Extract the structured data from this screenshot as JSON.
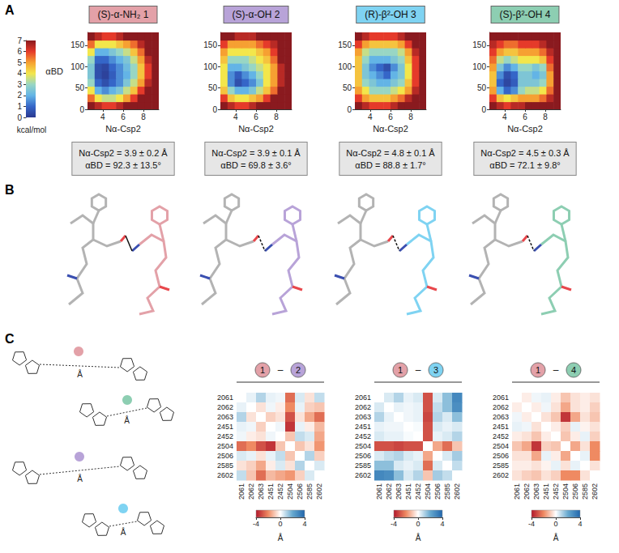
{
  "panel_labels": [
    "A",
    "B",
    "C"
  ],
  "colorbars": [
    {
      "range": [
        0,
        7
      ],
      "ticks": [
        0,
        1,
        2,
        3,
        4,
        5,
        6,
        7
      ],
      "label": "kcal/mol"
    },
    {
      "range": [
        -4,
        4
      ],
      "ticks": [
        -4,
        0,
        4
      ],
      "label": "Å"
    }
  ],
  "schematic": [
    {
      "color": "#e3a1a8",
      "label": "Å"
    },
    {
      "color": "#8dceb2",
      "label": "Å"
    },
    {
      "color": "#b8a3d8",
      "label": "Å"
    },
    {
      "color": "#7fd3f2",
      "label": "Å"
    }
  ],
  "chart_data": [
    {
      "type": "heatmap",
      "title": "(S)-α-NH₂ 1",
      "color": "#e3a1a8",
      "x_label": "Nα-Csp2",
      "y_label": "αBD",
      "xlim": [
        2.5,
        9.5
      ],
      "ylim": [
        0,
        180
      ],
      "xticks": [
        4,
        6,
        8
      ],
      "yticks": [
        0,
        50,
        100,
        150
      ],
      "x": [
        2.85,
        3.55,
        4.25,
        4.95,
        5.65,
        6.35,
        7.05,
        7.75,
        8.45,
        9.15
      ],
      "y": [
        9,
        27,
        45,
        63,
        81,
        99,
        117,
        135,
        153,
        171
      ],
      "cells": [
        [
          7,
          6.5,
          6,
          6,
          6.5,
          7,
          7,
          7,
          7,
          7
        ],
        [
          5.5,
          4,
          3.5,
          3.5,
          4,
          5,
          6,
          7,
          7,
          7
        ],
        [
          4,
          2,
          1.5,
          2,
          2.5,
          3.5,
          4.5,
          6,
          7,
          7
        ],
        [
          3,
          1,
          0.5,
          1,
          1.5,
          2.5,
          3.5,
          5,
          6.5,
          7
        ],
        [
          2.5,
          0.5,
          0.2,
          0.8,
          1.5,
          2,
          3,
          4.5,
          6,
          7
        ],
        [
          2.5,
          0.5,
          0.3,
          1,
          1.5,
          2.2,
          3,
          4.5,
          6,
          7
        ],
        [
          3,
          1,
          1,
          1.5,
          2,
          2.5,
          3.5,
          5,
          6.5,
          7
        ],
        [
          4,
          2,
          2,
          2.5,
          3,
          3.5,
          4.5,
          5.5,
          7,
          7
        ],
        [
          5.5,
          4,
          4,
          4,
          4.5,
          5,
          5.5,
          6.5,
          7,
          7
        ],
        [
          7,
          6.5,
          6,
          6,
          6.5,
          7,
          7,
          7,
          7,
          7
        ]
      ],
      "annotations": [
        "Nα-Csp2 = 3.9 ± 0.2 Å",
        "αBD = 92.3 ± 13.5°"
      ]
    },
    {
      "type": "heatmap",
      "title": "(S)-α-OH 2",
      "color": "#b8a3d8",
      "x_label": "Nα-Csp2",
      "xlim": [
        2.5,
        9.5
      ],
      "ylim": [
        0,
        180
      ],
      "xticks": [
        4,
        6,
        8
      ],
      "yticks": [
        0,
        50,
        100,
        150
      ],
      "x": [
        2.85,
        3.55,
        4.25,
        4.95,
        5.65,
        6.35,
        7.05,
        7.75,
        8.45,
        9.15
      ],
      "y": [
        9,
        27,
        45,
        63,
        81,
        99,
        117,
        135,
        153,
        171
      ],
      "cells": [
        [
          7,
          6.5,
          6,
          6,
          6.5,
          7,
          7,
          7,
          7,
          7
        ],
        [
          6,
          4.5,
          4,
          4,
          4.5,
          5,
          6,
          7,
          7,
          7
        ],
        [
          4.5,
          3,
          2,
          2,
          2.5,
          3.5,
          4.5,
          5.5,
          7,
          7
        ],
        [
          4,
          1.5,
          0.5,
          1,
          1.5,
          2.5,
          4,
          5,
          6.5,
          7
        ],
        [
          4,
          1.5,
          0.8,
          1.5,
          2,
          3,
          4,
          5,
          6.5,
          7
        ],
        [
          4,
          2,
          2,
          2.5,
          3,
          3.5,
          4,
          5,
          6.5,
          7
        ],
        [
          4.5,
          3,
          3,
          3,
          3.5,
          4,
          4.5,
          5.5,
          7,
          7
        ],
        [
          5,
          4,
          4,
          4,
          4,
          4.5,
          5,
          6,
          7,
          7
        ],
        [
          6,
          5,
          5,
          5,
          5,
          5.5,
          6,
          6.5,
          7,
          7
        ],
        [
          7,
          7,
          6.5,
          6.5,
          6.5,
          7,
          7,
          7,
          7,
          7
        ]
      ],
      "annotations": [
        "Nα-Csp2 = 3.9 ± 0.1 Å",
        "αBD = 69.8 ± 3.6°"
      ]
    },
    {
      "type": "heatmap",
      "title": "(R)-β²-OH 3",
      "color": "#7fd3f2",
      "x_label": "Nα-Csp2",
      "xlim": [
        2.5,
        9.5
      ],
      "ylim": [
        0,
        180
      ],
      "xticks": [
        4,
        6,
        8
      ],
      "yticks": [
        0,
        50,
        100,
        150
      ],
      "x": [
        2.85,
        3.55,
        4.25,
        4.95,
        5.65,
        6.35,
        7.05,
        7.75,
        8.45,
        9.15
      ],
      "y": [
        9,
        27,
        45,
        63,
        81,
        99,
        117,
        135,
        153,
        171
      ],
      "cells": [
        [
          7,
          6.5,
          6,
          6,
          6,
          6.5,
          7,
          7,
          7,
          7
        ],
        [
          6,
          5,
          4.5,
          4.5,
          4.5,
          5,
          5.5,
          6.5,
          7,
          7
        ],
        [
          5,
          4,
          3,
          3,
          3,
          3.5,
          4,
          5,
          6.5,
          7
        ],
        [
          4.5,
          3,
          2.5,
          2,
          2,
          2.5,
          3,
          4.5,
          6,
          7
        ],
        [
          4.5,
          2.5,
          2,
          1.5,
          1,
          2,
          2.5,
          4,
          6,
          7
        ],
        [
          4.5,
          2.5,
          1.5,
          1,
          0.5,
          1.5,
          2.5,
          4,
          6,
          7
        ],
        [
          4.5,
          3,
          2,
          2,
          2,
          2.5,
          3,
          4.5,
          6,
          7
        ],
        [
          5,
          3.5,
          3,
          3,
          3,
          3,
          3.5,
          5,
          6.5,
          7
        ],
        [
          6,
          5,
          4.5,
          4.5,
          4.5,
          4.5,
          5,
          6,
          7,
          7
        ],
        [
          7,
          6.5,
          6,
          6,
          6,
          6,
          6.5,
          7,
          7,
          7
        ]
      ],
      "annotations": [
        "Nα-Csp2 = 4.8 ± 0.1 Å",
        "αBD = 88.8 ± 1.7°"
      ]
    },
    {
      "type": "heatmap",
      "title": "(S)-β²-OH 4",
      "color": "#8dceb2",
      "x_label": "Nα-Csp2",
      "xlim": [
        2.5,
        9.5
      ],
      "ylim": [
        0,
        180
      ],
      "xticks": [
        4,
        6,
        8
      ],
      "yticks": [
        0,
        50,
        100,
        150
      ],
      "x": [
        2.85,
        3.55,
        4.25,
        4.95,
        5.65,
        6.35,
        7.05,
        7.75,
        8.45,
        9.15
      ],
      "y": [
        9,
        27,
        45,
        63,
        81,
        99,
        117,
        135,
        153,
        171
      ],
      "cells": [
        [
          7,
          6.5,
          6,
          6.5,
          6.5,
          7,
          7,
          7,
          7,
          7
        ],
        [
          6,
          4.5,
          4,
          4.5,
          5,
          5,
          5,
          5.5,
          6.5,
          7
        ],
        [
          5,
          2,
          1,
          1.5,
          3,
          3.5,
          3.5,
          4,
          5.5,
          7
        ],
        [
          4.5,
          1,
          0.3,
          0.8,
          2.5,
          2.5,
          2.5,
          3,
          5,
          7
        ],
        [
          4.5,
          1.5,
          0.5,
          1,
          2.5,
          2.5,
          2,
          2.5,
          5,
          7
        ],
        [
          5,
          2.5,
          1.5,
          2,
          3,
          3,
          2.5,
          3,
          5.5,
          7
        ],
        [
          5.5,
          3.5,
          3,
          3.5,
          4,
          4,
          4,
          4.5,
          6,
          7
        ],
        [
          6,
          5,
          4.5,
          4.5,
          5,
          5,
          5,
          5.5,
          6.5,
          7
        ],
        [
          6.5,
          6,
          5.5,
          5.5,
          6,
          6,
          6,
          6.5,
          7,
          7
        ],
        [
          7,
          7,
          7,
          7,
          7,
          7,
          7,
          7,
          7,
          7
        ]
      ],
      "annotations": [
        "Nα-Csp2 = 4.5 ± 0.3 Å",
        "αBD = 72.1 ± 9.8°"
      ]
    },
    {
      "type": "heatmap",
      "separator": "–",
      "pair": [
        {
          "label": "1",
          "color": "#e3a1a8"
        },
        {
          "label": "2",
          "color": "#b8a3d8"
        }
      ],
      "categories": [
        "2061",
        "2062",
        "2063",
        "2451",
        "2452",
        "2504",
        "2506",
        "2585",
        "2602"
      ],
      "cells": [
        [
          0,
          0.3,
          1.0,
          0.3,
          0.2,
          -2.5,
          0.5,
          -0.5,
          0.8
        ],
        [
          0.3,
          0,
          -0.5,
          0.2,
          -0.3,
          -2.0,
          0.3,
          -0.8,
          -1.0
        ],
        [
          1.0,
          -0.5,
          0,
          -0.8,
          -0.5,
          -3.0,
          -0.5,
          -1.5,
          -2.5
        ],
        [
          0.3,
          0.2,
          -0.8,
          0,
          0.2,
          -3.5,
          0.3,
          -0.3,
          -1.2
        ],
        [
          0.2,
          -0.3,
          -0.5,
          0.2,
          0,
          -1.0,
          0.8,
          0.5,
          -1.5
        ],
        [
          -2.5,
          -2.0,
          -3.0,
          -3.5,
          -1.0,
          0,
          -1.0,
          -0.5,
          -1.8
        ],
        [
          0.5,
          0.3,
          -0.5,
          0.3,
          0.8,
          -1.0,
          0,
          1.0,
          -0.8
        ],
        [
          -0.5,
          -0.8,
          -1.5,
          -0.3,
          0.5,
          -0.5,
          1.0,
          0,
          0.5
        ],
        [
          0.8,
          -1.0,
          -2.5,
          -1.2,
          -1.5,
          -1.8,
          -0.8,
          0.5,
          0
        ]
      ]
    },
    {
      "type": "heatmap",
      "separator": "–",
      "pair": [
        {
          "label": "1",
          "color": "#e3a1a8"
        },
        {
          "label": "3",
          "color": "#7fd3f2"
        }
      ],
      "categories": [
        "2061",
        "2062",
        "2063",
        "2451",
        "2452",
        "2504",
        "2506",
        "2585",
        "2602"
      ],
      "cells": [
        [
          0,
          0.5,
          1.0,
          0.3,
          0.5,
          -3.0,
          0.5,
          1.5,
          3.0
        ],
        [
          0.5,
          0,
          0.3,
          0.2,
          0.3,
          -3.0,
          0.8,
          1.5,
          2.8
        ],
        [
          1.0,
          0.3,
          0,
          0.2,
          0.3,
          -3.2,
          1.0,
          0.5,
          1.5
        ],
        [
          0.3,
          0.2,
          0.2,
          0,
          0.1,
          -3.0,
          0.5,
          0.3,
          0.5
        ],
        [
          0.5,
          0.3,
          0.3,
          0.1,
          0,
          -3.0,
          0.3,
          0.5,
          1.0
        ],
        [
          -3.0,
          -3.0,
          -3.2,
          -3.0,
          -3.0,
          0,
          -1.5,
          -2.5,
          -1.0
        ],
        [
          0.5,
          0.8,
          1.0,
          0.5,
          0.3,
          -1.5,
          0,
          0.5,
          1.2
        ],
        [
          1.5,
          1.5,
          0.5,
          0.3,
          0.5,
          -2.5,
          0.5,
          0,
          0.8
        ],
        [
          3.0,
          2.8,
          1.5,
          0.5,
          1.0,
          -1.0,
          1.2,
          0.8,
          0
        ]
      ]
    },
    {
      "type": "heatmap",
      "separator": "–",
      "pair": [
        {
          "label": "1",
          "color": "#e3a1a8"
        },
        {
          "label": "4",
          "color": "#8dceb2"
        }
      ],
      "categories": [
        "2061",
        "2062",
        "2063",
        "2451",
        "2452",
        "2504",
        "2506",
        "2585",
        "2602"
      ],
      "cells": [
        [
          0,
          -0.3,
          0.2,
          0.3,
          -0.3,
          -1.0,
          -0.5,
          -0.3,
          -0.5
        ],
        [
          -0.3,
          0,
          -0.3,
          0.2,
          -0.5,
          -1.5,
          -0.5,
          -0.3,
          -0.8
        ],
        [
          0.2,
          -0.3,
          0,
          -0.5,
          -1.0,
          -3.5,
          -1.5,
          -0.5,
          -1.0
        ],
        [
          0.3,
          0.2,
          -0.5,
          0,
          -0.3,
          -0.8,
          0.3,
          -0.2,
          -0.5
        ],
        [
          -0.3,
          -0.5,
          -1.0,
          -0.3,
          0,
          -1.0,
          -0.3,
          0.3,
          -0.8
        ],
        [
          -1.0,
          -1.5,
          -3.5,
          -0.8,
          -1.0,
          0,
          -1.5,
          -0.5,
          -2.0
        ],
        [
          -0.5,
          -0.5,
          -1.5,
          0.3,
          -0.3,
          -1.5,
          0,
          0.3,
          -2.0
        ],
        [
          -0.3,
          -0.3,
          -0.5,
          -0.2,
          0.3,
          -0.5,
          0.3,
          0,
          -0.5
        ],
        [
          -0.5,
          -0.8,
          -1.0,
          -0.5,
          -0.8,
          -2.0,
          -2.0,
          -0.5,
          0
        ]
      ]
    }
  ]
}
